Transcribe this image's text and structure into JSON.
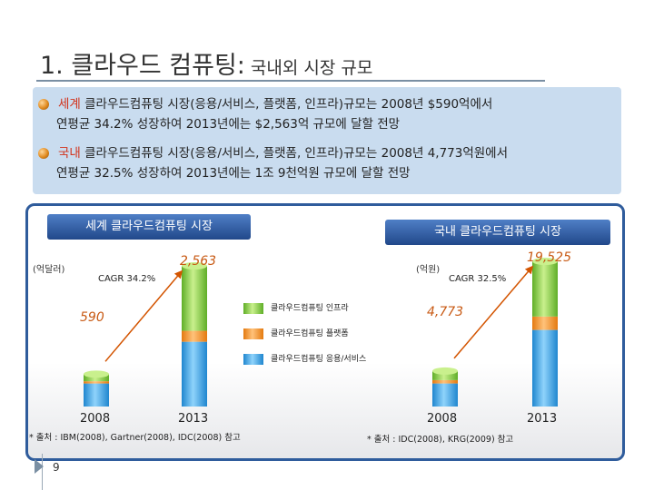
{
  "slide": {
    "title_main": "1. 클라우드 컴퓨팅:",
    "title_sub": "국내외 시장 규모",
    "page_number": "9"
  },
  "bullets": [
    {
      "keyword": "세계",
      "line1": " 클라우드컴퓨팅 시장(응용/서비스, 플랫폼, 인프라)규모는 2008년 $590억에서",
      "line2": "연평균 34.2% 성장하여 2013년에는 $2,563억 규모에 달할 전망"
    },
    {
      "keyword": "국내",
      "line1": " 클라우드컴퓨팅 시장(응용/서비스, 플랫폼, 인프라)규모는 2008년 4,773억원에서",
      "line2": "연평균 32.5% 성장하여 2013년에는 1조 9천억원 규모에 달할 전망"
    }
  ],
  "left_chart": {
    "header": "세계 클라우드컴퓨팅 시장",
    "unit": "(억달러)",
    "cagr": "CAGR 34.2%",
    "value_label_2008": "590",
    "value_label_2013": "2,563",
    "source": "* 출처 : IBM(2008), Gartner(2008), IDC(2008) 참고"
  },
  "right_chart": {
    "header": "국내 클라우드컴퓨팅 시장",
    "unit": "(억원)",
    "cagr": "CAGR 32.5%",
    "value_label_2008": "4,773",
    "value_label_2013": "19,525",
    "source": "* 출처 : IDC(2008), KRG(2009) 참고"
  },
  "legend": [
    {
      "label": "클라우드컴퓨팅 인프라",
      "color": "#7ac143"
    },
    {
      "label": "클라우드컴퓨팅 플랫폼",
      "color": "#f7941d"
    },
    {
      "label": "클라우드컴퓨팅 응용/서비스",
      "color": "#3aa3e3"
    }
  ],
  "chart_data": [
    {
      "type": "bar",
      "stacked": true,
      "title": "세계 클라우드컴퓨팅 시장",
      "ylabel": "(억달러)",
      "categories": [
        "2008",
        "2013"
      ],
      "totals": [
        590,
        2563
      ],
      "series": [
        {
          "name": "클라우드컴퓨팅 응용/서비스",
          "values": [
            420,
            1180
          ]
        },
        {
          "name": "클라우드컴퓨팅 플랫폼",
          "values": [
            40,
            200
          ]
        },
        {
          "name": "클라우드컴퓨팅 인프라",
          "values": [
            130,
            1183
          ]
        }
      ],
      "annotation": "CAGR 34.2%",
      "ylim": [
        0,
        2563
      ]
    },
    {
      "type": "bar",
      "stacked": true,
      "title": "국내 클라우드컴퓨팅 시장",
      "ylabel": "(억원)",
      "categories": [
        "2008",
        "2013"
      ],
      "totals": [
        4773,
        19525
      ],
      "series": [
        {
          "name": "클라우드컴퓨팅 응용/서비스",
          "values": [
            3100,
            10300
          ]
        },
        {
          "name": "클라우드컴퓨팅 플랫폼",
          "values": [
            450,
            1800
          ]
        },
        {
          "name": "클라우드컴퓨팅 인프라",
          "values": [
            1223,
            7425
          ]
        }
      ],
      "annotation": "CAGR 32.5%",
      "ylim": [
        0,
        19525
      ]
    }
  ]
}
